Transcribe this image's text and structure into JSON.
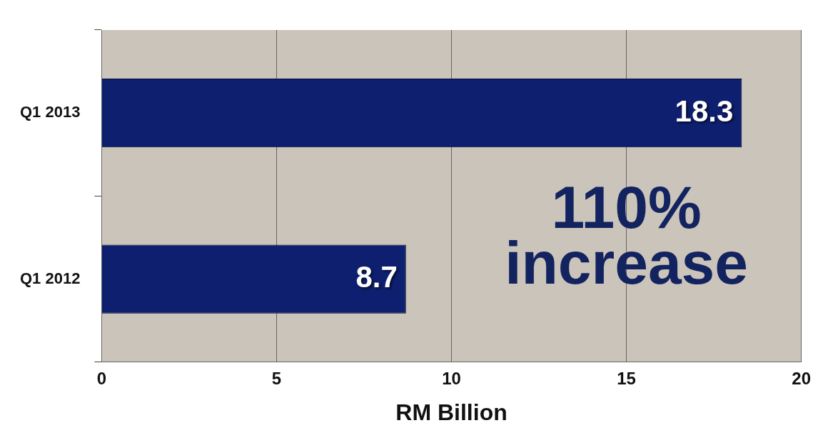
{
  "chart_data": {
    "type": "bar",
    "orientation": "horizontal",
    "categories": [
      "Q1 2013",
      "Q1 2012"
    ],
    "values": [
      18.3,
      8.7
    ],
    "color": "#0d1f6e",
    "xlim": [
      0,
      20
    ],
    "xticks": [
      0,
      5,
      10,
      15,
      20
    ],
    "xlabel": "RM Billion",
    "grid": "x",
    "data_labels": true,
    "annotations": [
      "110% increase"
    ]
  }
}
